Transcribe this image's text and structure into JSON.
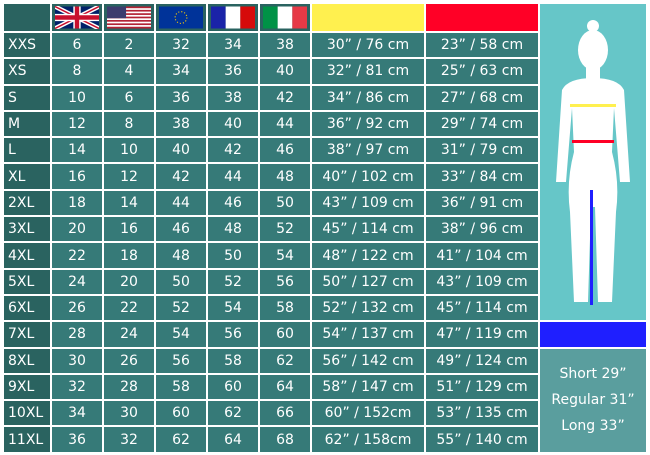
{
  "header": {
    "flags": [
      "uk-flag",
      "us-flag",
      "eu-flag",
      "france-flag",
      "italy-flag"
    ],
    "bust_color": "#fff04f",
    "waist_color": "#ff0026",
    "inseam_color": "#1f1fff"
  },
  "rows": [
    [
      "XXS",
      "6",
      "2",
      "32",
      "34",
      "38",
      "30” / 76 cm",
      "23” / 58 cm"
    ],
    [
      "XS",
      "8",
      "4",
      "34",
      "36",
      "40",
      "32” / 81 cm",
      "25” / 63 cm"
    ],
    [
      "S",
      "10",
      "6",
      "36",
      "38",
      "42",
      "34” / 86 cm",
      "27” / 68 cm"
    ],
    [
      "M",
      "12",
      "8",
      "38",
      "40",
      "44",
      "36” / 92 cm",
      "29” / 74 cm"
    ],
    [
      "L",
      "14",
      "10",
      "40",
      "42",
      "46",
      "38” / 97 cm",
      "31” / 79 cm"
    ],
    [
      "XL",
      "16",
      "12",
      "42",
      "44",
      "48",
      "40” / 102 cm",
      "33” / 84 cm"
    ],
    [
      "2XL",
      "18",
      "14",
      "44",
      "46",
      "50",
      "43” / 109 cm",
      "36” / 91 cm"
    ],
    [
      "3XL",
      "20",
      "16",
      "46",
      "48",
      "52",
      "45” / 114 cm",
      "38” / 96 cm"
    ],
    [
      "4XL",
      "22",
      "18",
      "48",
      "50",
      "54",
      "48” / 122 cm",
      "41” / 104 cm"
    ],
    [
      "5XL",
      "24",
      "20",
      "50",
      "52",
      "56",
      "50” / 127 cm",
      "43” / 109 cm"
    ],
    [
      "6XL",
      "26",
      "22",
      "52",
      "54",
      "58",
      "52” / 132 cm",
      "45” / 114 cm"
    ],
    [
      "7XL",
      "28",
      "24",
      "54",
      "56",
      "60",
      "54” / 137 cm",
      "47” / 119 cm"
    ],
    [
      "8XL",
      "30",
      "26",
      "56",
      "58",
      "62",
      "56” / 142 cm",
      "49” / 124 cm"
    ],
    [
      "9XL",
      "32",
      "28",
      "58",
      "60",
      "64",
      "58” / 147 cm",
      "51” / 129 cm"
    ],
    [
      "10XL",
      "34",
      "30",
      "60",
      "62",
      "66",
      "60” / 152cm",
      "53” / 135 cm"
    ],
    [
      "11XL",
      "36",
      "32",
      "62",
      "64",
      "68",
      "62” / 158cm",
      "55” / 140 cm"
    ]
  ],
  "inseam": [
    "Short 29”",
    "Regular 31”",
    "Long 33”"
  ]
}
